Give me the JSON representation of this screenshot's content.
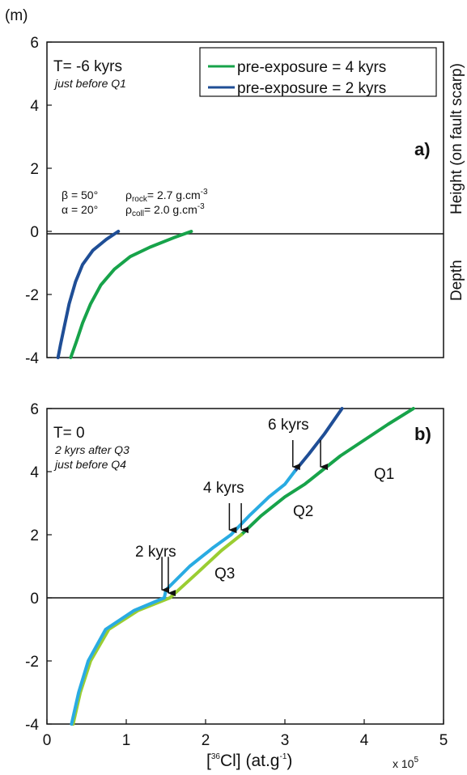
{
  "chart_data": [
    {
      "panel": "a)",
      "type": "line",
      "unit_label": "(m)",
      "ylim": [
        -4,
        6
      ],
      "xlim": [
        0,
        5
      ],
      "yticks": [
        "6",
        "4",
        "2",
        "0",
        "-2",
        "-4"
      ],
      "ylabel_top": "Height  (on fault scarp)",
      "ylabel_bottom": "Depth",
      "time_label": "T= -6 kyrs",
      "time_note": "just before Q1",
      "params": {
        "beta": "β = 50°",
        "alpha": "α = 20°",
        "rho_rock_label": "ρ",
        "rho_rock_sub": "rock",
        "rho_rock_val": "= 2.7 g.cm",
        "rho_coll_label": "ρ",
        "rho_coll_sub": "coll",
        "rho_coll_val": "= 2.0 g.cm",
        "exp": "-3"
      },
      "legend": [
        {
          "label": "pre-exposure = 4 kyrs",
          "color": "#17a34a"
        },
        {
          "label": "pre-exposure = 2 kyrs",
          "color": "#1f4e96"
        }
      ],
      "series": [
        {
          "name": "pre-exposure = 4 kyrs",
          "color": "#17a34a",
          "points": [
            [
              1.82,
              0
            ],
            [
              1.6,
              -0.2
            ],
            [
              1.3,
              -0.5
            ],
            [
              1.05,
              -0.8
            ],
            [
              0.85,
              -1.2
            ],
            [
              0.68,
              -1.7
            ],
            [
              0.55,
              -2.3
            ],
            [
              0.45,
              -2.9
            ],
            [
              0.37,
              -3.5
            ],
            [
              0.3,
              -4.0
            ]
          ]
        },
        {
          "name": "pre-exposure = 2 kyrs",
          "color": "#1f4e96",
          "points": [
            [
              0.9,
              0
            ],
            [
              0.75,
              -0.25
            ],
            [
              0.58,
              -0.6
            ],
            [
              0.45,
              -1.05
            ],
            [
              0.36,
              -1.6
            ],
            [
              0.28,
              -2.3
            ],
            [
              0.22,
              -3.0
            ],
            [
              0.17,
              -3.6
            ],
            [
              0.14,
              -4.0
            ]
          ]
        }
      ]
    },
    {
      "panel": "b)",
      "type": "line",
      "ylim": [
        -4,
        6
      ],
      "xlim": [
        0,
        5
      ],
      "yticks": [
        "6",
        "4",
        "2",
        "0",
        "-2",
        "-4"
      ],
      "xticks": [
        "0",
        "1",
        "2",
        "3",
        "4",
        "5"
      ],
      "xlabel_pre": "[",
      "xlabel_sup": "36",
      "xlabel_post": "Cl] (at.g",
      "xlabel_exp": "-1",
      "xlabel_end": ")",
      "x_multiplier": "x 10",
      "x_multiplier_exp": "5",
      "time_label": "T= 0",
      "time_note_1": "2 kyrs after Q3",
      "time_note_2": "just before Q4",
      "annotations": {
        "k2": "2 kyrs",
        "k4": "4 kyrs",
        "k6": "6 kyrs",
        "q1": "Q1",
        "q2": "Q2",
        "q3": "Q3"
      },
      "series": [
        {
          "name": "Q1 (pre-exposure 4 kyrs)",
          "color": "#17a34a",
          "points": [
            [
              3.45,
              4.0
            ],
            [
              3.7,
              4.5
            ],
            [
              4.0,
              5.0
            ],
            [
              4.3,
              5.5
            ],
            [
              4.62,
              6.0
            ]
          ]
        },
        {
          "name": "Q1 (pre-exposure 2 kyrs)",
          "color": "#1f4e96",
          "points": [
            [
              3.12,
              4.0
            ],
            [
              3.3,
              4.55
            ],
            [
              3.5,
              5.2
            ],
            [
              3.72,
              6.0
            ]
          ]
        },
        {
          "name": "Q2 (pre-exposure 4 kyrs)",
          "color": "#17a34a",
          "points": [
            [
              2.45,
              2.0
            ],
            [
              2.7,
              2.6
            ],
            [
              3.0,
              3.2
            ],
            [
              3.25,
              3.6
            ],
            [
              3.45,
              4.0
            ]
          ]
        },
        {
          "name": "Q2 (pre-exposure 2 kyrs)",
          "color": "#29abe2",
          "points": [
            [
              2.32,
              2.0
            ],
            [
              2.55,
              2.6
            ],
            [
              2.8,
              3.2
            ],
            [
              3.0,
              3.6
            ],
            [
              3.12,
              4.0
            ]
          ]
        },
        {
          "name": "Q3-Q4 (pre-exposure 4 kyrs)",
          "color": "#9acd32",
          "points": [
            [
              0.33,
              -4.0
            ],
            [
              0.42,
              -3.0
            ],
            [
              0.55,
              -2.0
            ],
            [
              0.78,
              -1.0
            ],
            [
              1.15,
              -0.4
            ],
            [
              1.55,
              0.0
            ],
            [
              1.9,
              0.8
            ],
            [
              2.2,
              1.5
            ],
            [
              2.45,
              2.0
            ]
          ]
        },
        {
          "name": "Q3-Q4 (pre-exposure 2 kyrs)",
          "color": "#29abe2",
          "points": [
            [
              0.31,
              -4.0
            ],
            [
              0.4,
              -3.0
            ],
            [
              0.52,
              -2.0
            ],
            [
              0.74,
              -1.0
            ],
            [
              1.1,
              -0.4
            ],
            [
              1.48,
              0.0
            ],
            [
              1.5,
              0.25
            ],
            [
              1.8,
              1.0
            ],
            [
              2.1,
              1.6
            ],
            [
              2.32,
              2.0
            ]
          ]
        }
      ],
      "arrows": [
        {
          "x": 1.45,
          "y_from": 1.3,
          "y_to": 0.2
        },
        {
          "x": 1.53,
          "y_from": 1.3,
          "y_to": 0.1
        },
        {
          "x": 2.3,
          "y_from": 3.0,
          "y_to": 2.1
        },
        {
          "x": 2.45,
          "y_from": 3.0,
          "y_to": 2.1
        },
        {
          "x": 3.1,
          "y_from": 5.0,
          "y_to": 4.1
        },
        {
          "x": 3.45,
          "y_from": 5.0,
          "y_to": 4.1
        }
      ]
    }
  ]
}
